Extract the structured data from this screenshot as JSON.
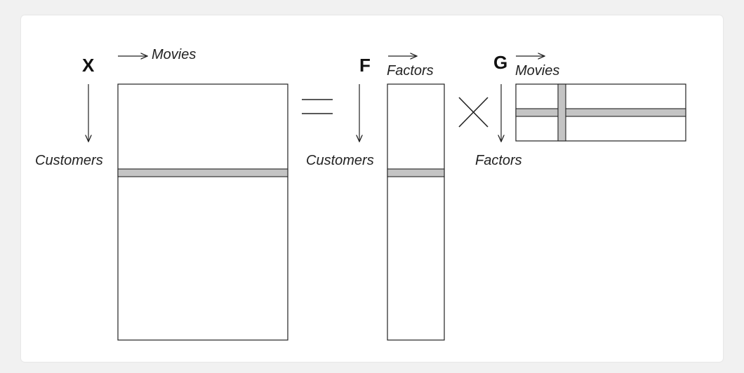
{
  "matrices": {
    "x": {
      "letter": "X",
      "column_label": "Movies",
      "row_label": "Customers"
    },
    "f": {
      "letter": "F",
      "column_label": "Factors",
      "row_label": "Customers"
    },
    "g": {
      "letter": "G",
      "column_label": "Movies",
      "row_label": "Factors"
    }
  },
  "operators": {
    "equals": "equals-sign",
    "times": "times-sign"
  },
  "colors": {
    "highlight_band": "#c4c4c4",
    "outline": "#222222",
    "background": "#f1f1f1",
    "card": "#ffffff"
  }
}
